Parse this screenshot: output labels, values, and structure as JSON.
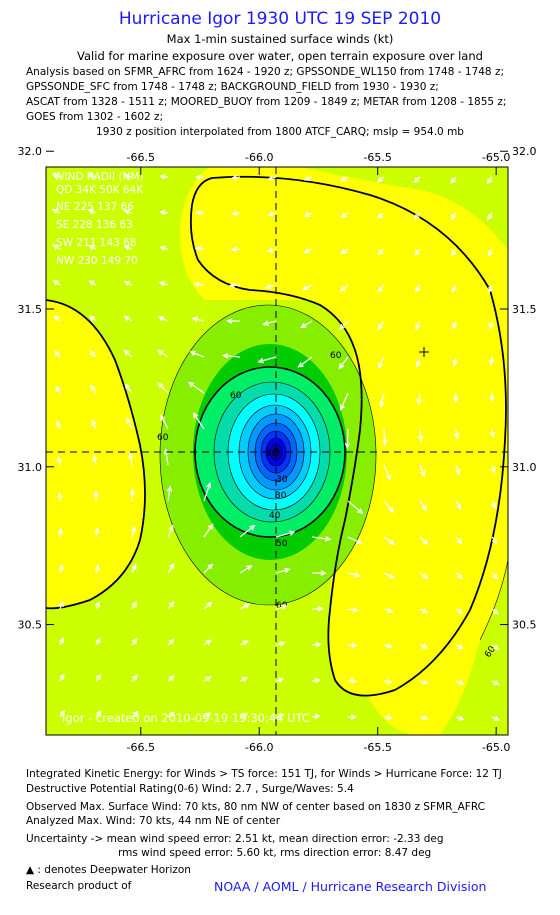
{
  "header": {
    "title": "Hurricane Igor 1930 UTC 19 SEP 2010",
    "subtitle1": "Max 1-min sustained surface winds (kt)",
    "subtitle2": "Valid for marine exposure over water, open terrain exposure over land",
    "analysis_lines": [
      "Analysis based on SFMR_AFRC from 1624 - 1920 z; GPSSONDE_WL150 from 1748 - 1748 z;",
      "GPSSONDE_SFC from 1748 - 1748 z; BACKGROUND_FIELD from 1930 - 1930 z;",
      "ASCAT from 1328 - 1511 z; MOORED_BUOY from 1209 - 1849 z; METAR from 1208 - 1855 z;",
      "GOES from 1302 - 1602 z;"
    ],
    "position_note": "1930 z position interpolated from 1800 ATCF_CARQ; mslp = 954.0 mb"
  },
  "wind_radii": {
    "title": "WIND RADII (NM)",
    "header": "QD 34K 50K 64K",
    "rows": [
      "NE 225 137  66",
      "SE 228 136  63",
      "SW 211 143  68",
      "NW 230 149  70"
    ]
  },
  "credit": "Igor - created on 2010-09-19 19:30:44 UTC",
  "chart_data": {
    "type": "heatmap",
    "title": "Hurricane Igor 1930 UTC 19 SEP 2010",
    "subtitle": "Max 1-min sustained surface winds (kt)",
    "xlabel": "",
    "ylabel": "",
    "xlim": [
      -66.9,
      -64.95
    ],
    "ylim": [
      30.15,
      31.95
    ],
    "x_ticks": [
      -66.5,
      -66.0,
      -65.5,
      -65.0
    ],
    "x_tick_labels": [
      "-66.5",
      "-66.0",
      "-65.5",
      "-65.0"
    ],
    "y_ticks": [
      30.5,
      31.0,
      31.5,
      32.0
    ],
    "y_tick_labels": [
      "30.5",
      "31.0",
      "31.5",
      "32.0"
    ],
    "center": {
      "lon": -65.92,
      "lat": 31.09
    },
    "crosshair_marker": {
      "lon": -65.29,
      "lat": 31.45
    },
    "contour_labels": [
      "60",
      "60",
      "60",
      "60",
      "50",
      "40",
      "30",
      "30",
      "20",
      "60"
    ],
    "colors": {
      "yellow": "#ffff00",
      "yellow_green": "#ccff00",
      "light_green": "#88ee00",
      "green": "#00cc00",
      "bright_green": "#00ee66",
      "aqua": "#00ddaa",
      "cyan": "#00ffff",
      "sky": "#00ccff",
      "blue1": "#0099ff",
      "blue2": "#0066ff",
      "blue3": "#0033ff",
      "blue4": "#0000ee",
      "blue5": "#0000cc",
      "blue6": "#000099"
    },
    "grid": false,
    "legend": "none"
  },
  "footer": {
    "ike": "Integrated Kinetic Energy:  for Winds > TS force: 151 TJ,  for Winds > Hurricane Force: 12 TJ",
    "dpr": "Destructive Potential Rating(0-6)   Wind: 2.7 , Surge/Waves: 5.4",
    "observed": "Observed Max. Surface Wind: 70 kts, 80 nm NW of center based on 1830 z SFMR_AFRC",
    "analyzed": "Analyzed Max. Wind: 70 kts, 44 nm NE of center",
    "uncert1": "Uncertainty -> mean wind speed error: 2.51 kt,   mean direction error:  -2.33 deg",
    "uncert2": "rms wind speed error: 5.60 kt,   rms direction error: 8.47 deg",
    "deepwater": ": denotes Deepwater Horizon",
    "research": "Research product of",
    "noaa": "NOAA / AOML / Hurricane Research Division"
  }
}
